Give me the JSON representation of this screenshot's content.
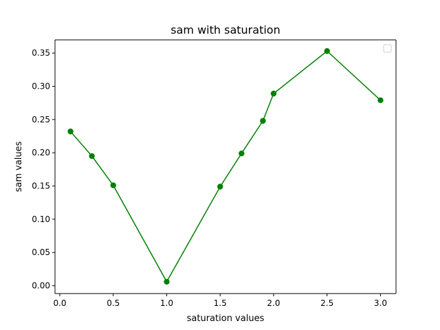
{
  "chart_data": {
    "type": "line",
    "title": "sam with saturation",
    "xlabel": "saturation values",
    "ylabel": "sam values",
    "xlim": [
      -0.045,
      3.145
    ],
    "ylim": [
      -0.0118,
      0.3698
    ],
    "xticks": [
      "0.0",
      "0.5",
      "1.0",
      "1.5",
      "2.0",
      "2.5",
      "3.0"
    ],
    "yticks": [
      "0.00",
      "0.05",
      "0.10",
      "0.15",
      "0.20",
      "0.25",
      "0.30",
      "0.35"
    ],
    "grid": false,
    "legend": "top-right, empty",
    "series": [
      {
        "color": "#008000",
        "marker": "circle",
        "x": [
          0.1,
          0.3,
          0.5,
          1.0,
          1.5,
          1.7,
          1.9,
          2.0,
          2.5,
          3.0
        ],
        "y": [
          0.232,
          0.195,
          0.151,
          0.006,
          0.149,
          0.199,
          0.248,
          0.289,
          0.353,
          0.279
        ]
      }
    ]
  }
}
